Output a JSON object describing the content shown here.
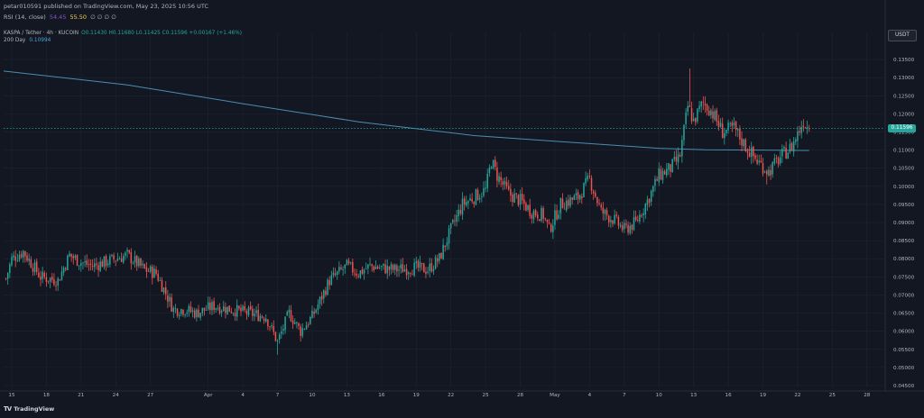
{
  "header": {
    "published_line": "petar010591 published on TradingView.com, May 23, 2025 10:56 UTC"
  },
  "rsi": {
    "label": "RSI (14, close)",
    "value1": "54.45",
    "value2": "55.50",
    "extra": "∅ ∅ ∅ ∅"
  },
  "legend": {
    "symbol": "KASPA / Tether · 4h · KUCOIN",
    "ohlc": "O0.11430 H0.11680 L0.11425 C0.11596 +0.00167 (+1.46%)",
    "ma_label": "200 Day",
    "ma_value": "0.10994"
  },
  "currency_button": "USDT",
  "last_price_tag": "0.11596",
  "brand": {
    "mark": "TV",
    "name": "TradingView"
  },
  "colors": {
    "background": "#131722",
    "up": "#26a69a",
    "down": "#ef5350",
    "ma": "#4a8db0",
    "grid": "#1f2433"
  },
  "chart_data": {
    "type": "candlestick",
    "symbol": "KASPA / Tether",
    "interval": "4h",
    "exchange": "KUCOIN",
    "ylim": [
      0.0445,
      0.1375
    ],
    "y_ticks": [
      "0.13500",
      "0.13000",
      "0.12500",
      "0.12000",
      "0.11500",
      "0.11000",
      "0.10500",
      "0.10000",
      "0.09500",
      "0.09000",
      "0.08500",
      "0.08000",
      "0.07500",
      "0.07000",
      "0.06500",
      "0.06000",
      "0.05500",
      "0.05000",
      "0.04500"
    ],
    "y_tick_values": [
      0.135,
      0.13,
      0.125,
      0.12,
      0.115,
      0.11,
      0.105,
      0.1,
      0.095,
      0.09,
      0.085,
      0.08,
      0.075,
      0.07,
      0.065,
      0.06,
      0.055,
      0.05,
      0.045
    ],
    "x_ticks": [
      "15",
      "18",
      "21",
      "24",
      "27",
      "Apr",
      "4",
      "7",
      "10",
      "13",
      "16",
      "19",
      "22",
      "25",
      "28",
      "May",
      "4",
      "7",
      "10",
      "13",
      "16",
      "19",
      "22",
      "25",
      "28"
    ],
    "x_tick_days": [
      0,
      3,
      6,
      9,
      12,
      17,
      20,
      23,
      26,
      29,
      32,
      35,
      38,
      41,
      44,
      47,
      50,
      53,
      56,
      59,
      62,
      65,
      68,
      71,
      74
    ],
    "x_domain_days": [
      -0.7,
      75.5
    ],
    "anchors": [
      {
        "d": -0.5,
        "p": 0.0745
      },
      {
        "d": 0.0,
        "p": 0.08
      },
      {
        "d": 1.0,
        "p": 0.082
      },
      {
        "d": 2.5,
        "p": 0.075
      },
      {
        "d": 4.0,
        "p": 0.074
      },
      {
        "d": 5.0,
        "p": 0.081
      },
      {
        "d": 6.0,
        "p": 0.079
      },
      {
        "d": 7.0,
        "p": 0.078
      },
      {
        "d": 9.0,
        "p": 0.08
      },
      {
        "d": 10.0,
        "p": 0.081
      },
      {
        "d": 11.5,
        "p": 0.077
      },
      {
        "d": 12.5,
        "p": 0.076
      },
      {
        "d": 14.0,
        "p": 0.066
      },
      {
        "d": 15.0,
        "p": 0.066
      },
      {
        "d": 16.0,
        "p": 0.065
      },
      {
        "d": 17.5,
        "p": 0.067
      },
      {
        "d": 19.0,
        "p": 0.066
      },
      {
        "d": 20.5,
        "p": 0.065
      },
      {
        "d": 22.0,
        "p": 0.064
      },
      {
        "d": 23.0,
        "p": 0.057
      },
      {
        "d": 24.0,
        "p": 0.065
      },
      {
        "d": 25.0,
        "p": 0.06
      },
      {
        "d": 26.0,
        "p": 0.064
      },
      {
        "d": 27.5,
        "p": 0.074
      },
      {
        "d": 29.0,
        "p": 0.078
      },
      {
        "d": 30.0,
        "p": 0.076
      },
      {
        "d": 31.0,
        "p": 0.078
      },
      {
        "d": 33.0,
        "p": 0.077
      },
      {
        "d": 35.0,
        "p": 0.0775
      },
      {
        "d": 36.0,
        "p": 0.077
      },
      {
        "d": 37.0,
        "p": 0.08
      },
      {
        "d": 38.0,
        "p": 0.088
      },
      {
        "d": 39.0,
        "p": 0.095
      },
      {
        "d": 40.0,
        "p": 0.097
      },
      {
        "d": 41.0,
        "p": 0.099
      },
      {
        "d": 41.5,
        "p": 0.107
      },
      {
        "d": 42.0,
        "p": 0.103
      },
      {
        "d": 43.0,
        "p": 0.098
      },
      {
        "d": 44.0,
        "p": 0.096
      },
      {
        "d": 45.0,
        "p": 0.093
      },
      {
        "d": 46.0,
        "p": 0.092
      },
      {
        "d": 46.5,
        "p": 0.088
      },
      {
        "d": 47.5,
        "p": 0.095
      },
      {
        "d": 49.0,
        "p": 0.097
      },
      {
        "d": 50.0,
        "p": 0.102
      },
      {
        "d": 51.0,
        "p": 0.093
      },
      {
        "d": 52.0,
        "p": 0.091
      },
      {
        "d": 53.0,
        "p": 0.088
      },
      {
        "d": 54.0,
        "p": 0.09
      },
      {
        "d": 55.0,
        "p": 0.096
      },
      {
        "d": 56.0,
        "p": 0.103
      },
      {
        "d": 57.0,
        "p": 0.105
      },
      {
        "d": 57.8,
        "p": 0.108
      },
      {
        "d": 58.5,
        "p": 0.122
      },
      {
        "d": 59.0,
        "p": 0.118
      },
      {
        "d": 59.8,
        "p": 0.123
      },
      {
        "d": 60.5,
        "p": 0.121
      },
      {
        "d": 61.5,
        "p": 0.115
      },
      {
        "d": 62.5,
        "p": 0.116
      },
      {
        "d": 63.5,
        "p": 0.111
      },
      {
        "d": 64.5,
        "p": 0.107
      },
      {
        "d": 65.5,
        "p": 0.104
      },
      {
        "d": 66.5,
        "p": 0.108
      },
      {
        "d": 67.5,
        "p": 0.111
      },
      {
        "d": 68.5,
        "p": 0.118
      },
      {
        "d": 69.0,
        "p": 0.1158
      }
    ],
    "ma_200_day": [
      {
        "d": -0.7,
        "p": 0.1318
      },
      {
        "d": 10.0,
        "p": 0.128
      },
      {
        "d": 20.0,
        "p": 0.1228
      },
      {
        "d": 30.0,
        "p": 0.1178
      },
      {
        "d": 40.0,
        "p": 0.114
      },
      {
        "d": 50.0,
        "p": 0.1118
      },
      {
        "d": 56.0,
        "p": 0.1105
      },
      {
        "d": 60.0,
        "p": 0.1101
      },
      {
        "d": 65.0,
        "p": 0.11
      },
      {
        "d": 69.0,
        "p": 0.1099
      }
    ],
    "extremes": {
      "low": {
        "d": 23.0,
        "p": 0.0535
      },
      "high": {
        "d": 58.6,
        "p": 0.1325
      },
      "dip_may": {
        "d": 65.3,
        "p": 0.1005
      }
    },
    "last_price": 0.11596,
    "ma_label": "200 Day",
    "ma_last": 0.10994
  }
}
